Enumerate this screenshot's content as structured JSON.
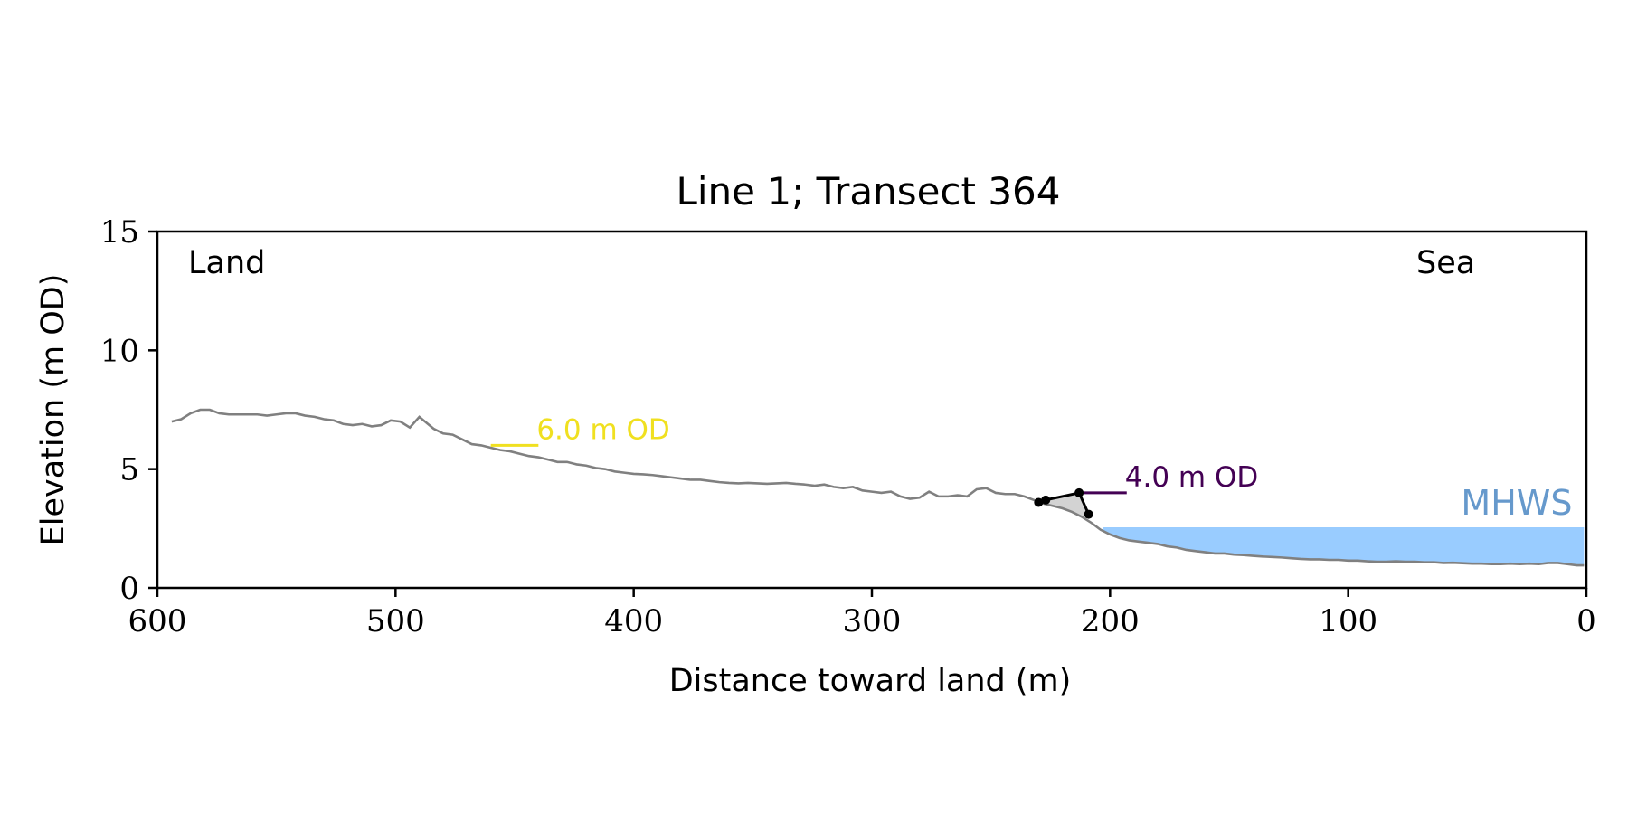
{
  "chart_data": {
    "type": "line",
    "title": "Line 1; Transect 364",
    "xlabel": "Distance toward land (m)",
    "ylabel": "Elevation (m OD)",
    "xlim": [
      600,
      0
    ],
    "ylim": [
      0,
      15
    ],
    "x_ticks": [
      600,
      500,
      400,
      300,
      200,
      100,
      0
    ],
    "y_ticks": [
      0,
      5,
      10,
      15
    ],
    "grid": false,
    "corner_labels": {
      "left": "Land",
      "right": "Sea"
    },
    "profile": {
      "color": "#808080",
      "x": [
        594,
        590,
        586,
        582,
        578,
        574,
        570,
        566,
        562,
        558,
        554,
        550,
        546,
        542,
        538,
        534,
        530,
        526,
        522,
        518,
        514,
        510,
        506,
        502,
        498,
        494,
        490,
        487,
        484,
        480,
        476,
        472,
        468,
        464,
        460,
        456,
        452,
        448,
        444,
        440,
        436,
        432,
        428,
        424,
        420,
        416,
        412,
        408,
        404,
        400,
        396,
        392,
        388,
        384,
        380,
        376,
        372,
        368,
        364,
        360,
        356,
        352,
        348,
        344,
        340,
        336,
        332,
        328,
        324,
        320,
        316,
        312,
        308,
        304,
        300,
        296,
        292,
        288,
        284,
        280,
        276,
        272,
        268,
        264,
        260,
        256,
        252,
        248,
        244,
        240,
        236,
        232,
        228,
        224,
        220,
        216,
        212,
        208,
        204,
        200,
        196,
        192,
        188,
        184,
        180,
        176,
        172,
        168,
        164,
        160,
        156,
        152,
        148,
        144,
        140,
        136,
        132,
        128,
        124,
        120,
        116,
        112,
        108,
        104,
        100,
        96,
        92,
        88,
        84,
        80,
        76,
        72,
        68,
        64,
        60,
        56,
        52,
        48,
        44,
        40,
        36,
        32,
        28,
        24,
        20,
        16,
        12,
        8,
        4,
        1
      ],
      "y": [
        7.0,
        7.1,
        7.35,
        7.5,
        7.5,
        7.35,
        7.3,
        7.3,
        7.3,
        7.3,
        7.25,
        7.3,
        7.35,
        7.35,
        7.25,
        7.2,
        7.1,
        7.05,
        6.9,
        6.85,
        6.9,
        6.8,
        6.85,
        7.05,
        7.0,
        6.75,
        7.2,
        6.95,
        6.7,
        6.5,
        6.45,
        6.25,
        6.05,
        6.0,
        5.9,
        5.8,
        5.75,
        5.65,
        5.55,
        5.5,
        5.4,
        5.3,
        5.3,
        5.2,
        5.15,
        5.05,
        5.0,
        4.9,
        4.85,
        4.8,
        4.78,
        4.75,
        4.7,
        4.65,
        4.6,
        4.55,
        4.55,
        4.5,
        4.45,
        4.42,
        4.4,
        4.42,
        4.4,
        4.38,
        4.4,
        4.42,
        4.38,
        4.35,
        4.3,
        4.35,
        4.25,
        4.2,
        4.25,
        4.1,
        4.05,
        4.0,
        4.05,
        3.85,
        3.75,
        3.8,
        4.05,
        3.85,
        3.85,
        3.9,
        3.85,
        4.15,
        4.2,
        4.0,
        3.95,
        3.95,
        3.85,
        3.7,
        3.55,
        3.45,
        3.35,
        3.2,
        3.0,
        2.75,
        2.45,
        2.25,
        2.1,
        2.0,
        1.95,
        1.9,
        1.85,
        1.75,
        1.7,
        1.6,
        1.55,
        1.5,
        1.45,
        1.45,
        1.4,
        1.38,
        1.35,
        1.32,
        1.3,
        1.28,
        1.25,
        1.22,
        1.2,
        1.2,
        1.18,
        1.18,
        1.15,
        1.15,
        1.12,
        1.1,
        1.1,
        1.12,
        1.1,
        1.1,
        1.08,
        1.08,
        1.05,
        1.06,
        1.04,
        1.02,
        1.02,
        1.0,
        1.0,
        1.02,
        1.0,
        1.02,
        1.0,
        1.05,
        1.05,
        1.0,
        0.95,
        0.95
      ]
    },
    "mhws": {
      "label": "MHWS",
      "elevation": 2.55,
      "x_start": 203,
      "x_end": 1,
      "color": "#99ccff",
      "label_color": "#6699cc"
    },
    "contours": [
      {
        "label": "6.0 m OD",
        "elevation": 6.0,
        "x_from": 460,
        "x_to": 440,
        "color": "#f0e020"
      },
      {
        "label": "4.0 m OD",
        "elevation": 4.0,
        "x_from": 213,
        "x_to": 193,
        "color": "#440154"
      }
    ],
    "feature": {
      "color": "#000000",
      "shade_color": "#d3d3d3",
      "points": [
        {
          "x": 230,
          "y": 3.6
        },
        {
          "x": 227,
          "y": 3.7
        },
        {
          "x": 213,
          "y": 4.0
        },
        {
          "x": 209,
          "y": 3.1
        }
      ]
    }
  }
}
